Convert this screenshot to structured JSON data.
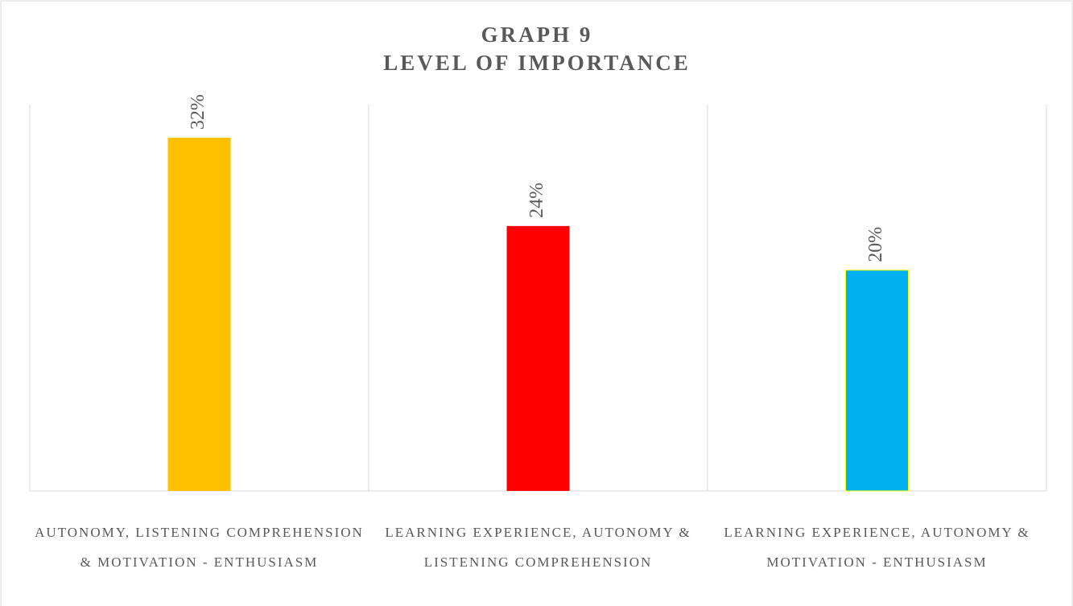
{
  "chart_data": {
    "type": "bar",
    "title": "GRAPH 9",
    "subtitle": "LEVEL OF IMPORTANCE",
    "categories": [
      "AUTONOMY, LISTENING COMPREHENSION & MOTIVATION - ENTHUSIASM",
      "LEARNING EXPERIENCE, AUTONOMY & LISTENING COMPREHENSION",
      "LEARNING EXPERIENCE, AUTONOMY & MOTIVATION - ENTHUSIASM"
    ],
    "values": [
      32,
      24,
      20
    ],
    "value_labels": [
      "32%",
      "24%",
      "20%"
    ],
    "colors": [
      "#ffc000",
      "#ff0000",
      "#00b0f0"
    ],
    "ylim": [
      0,
      35
    ]
  }
}
